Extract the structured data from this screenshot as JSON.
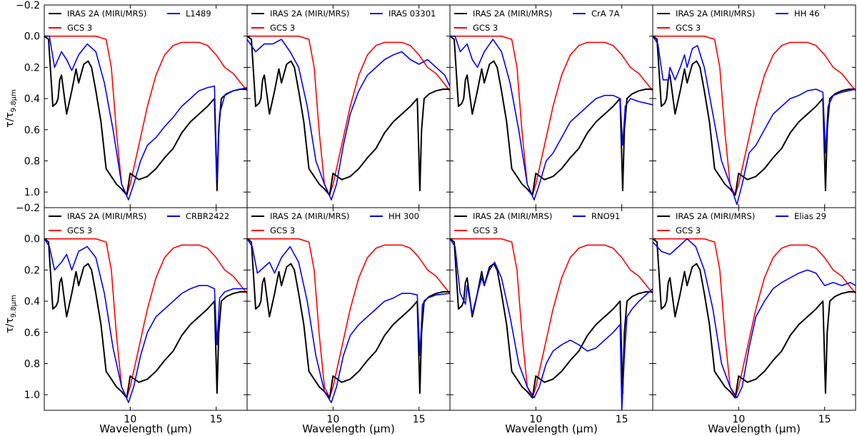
{
  "figure": {
    "ylabel": "τ/τ",
    "ylabel_sub": "9.8μm",
    "xlabel": "Wavelength (μm)"
  },
  "colors": {
    "reference": "#000000",
    "gcs3": "#ff0000",
    "source": "#0000ff"
  },
  "chart_data": {
    "type": "line",
    "layout": "2x4 grid of panels",
    "xlim": [
      5.0,
      16.8
    ],
    "ylim": [
      1.1,
      -0.2
    ],
    "y_inverted": true,
    "xticks": [
      10,
      15
    ],
    "yticks": [
      -0.2,
      0.0,
      0.2,
      0.4,
      0.6,
      0.8,
      1.0
    ],
    "ytick_labels": [
      "−0.2",
      "0.0",
      "0.2",
      "0.4",
      "0.6",
      "0.8",
      "1.0"
    ],
    "xlabel": "Wavelength (μm)",
    "ylabel": "τ/τ9.8μm",
    "reference_series": {
      "name": "IRAS 2A (MIRI/MRS)",
      "x": [
        5.0,
        5.25,
        5.5,
        5.7,
        5.8,
        5.9,
        6.0,
        6.3,
        6.6,
        6.85,
        7.0,
        7.3,
        7.55,
        7.75,
        8.0,
        8.3,
        8.6,
        8.9,
        9.2,
        9.5,
        9.8,
        10.0,
        10.5,
        11.0,
        11.5,
        12.0,
        12.5,
        13.0,
        13.5,
        14.0,
        14.5,
        14.9,
        15.05,
        15.15,
        15.3,
        15.6,
        16.0,
        16.4,
        16.8
      ],
      "y": [
        0.0,
        0.02,
        0.45,
        0.43,
        0.4,
        0.28,
        0.25,
        0.5,
        0.35,
        0.21,
        0.3,
        0.18,
        0.16,
        0.2,
        0.35,
        0.55,
        0.85,
        0.9,
        0.95,
        0.98,
        1.02,
        0.88,
        0.92,
        0.9,
        0.85,
        0.78,
        0.72,
        0.62,
        0.55,
        0.5,
        0.45,
        0.4,
        0.99,
        0.6,
        0.4,
        0.37,
        0.35,
        0.34,
        0.34
      ]
    },
    "gcs3_series": {
      "name": "GCS 3",
      "x": [
        5.0,
        6.0,
        7.0,
        8.0,
        8.6,
        8.9,
        9.2,
        9.5,
        9.8,
        10.0,
        10.5,
        11.0,
        11.5,
        12.0,
        12.5,
        13.0,
        13.5,
        14.0,
        14.5,
        15.0,
        15.5,
        16.0,
        16.8
      ],
      "y": [
        0.0,
        0.0,
        0.0,
        0.0,
        0.02,
        0.2,
        0.62,
        0.95,
        1.02,
        0.95,
        0.7,
        0.45,
        0.25,
        0.12,
        0.06,
        0.04,
        0.04,
        0.04,
        0.06,
        0.12,
        0.2,
        0.24,
        0.35
      ]
    },
    "panels": [
      {
        "legend": "L1489",
        "x": [
          5.0,
          5.3,
          5.6,
          6.0,
          6.3,
          6.6,
          7.0,
          7.5,
          8.0,
          8.5,
          9.0,
          9.5,
          9.9,
          10.2,
          10.6,
          11.0,
          11.5,
          12.0,
          12.5,
          13.0,
          13.5,
          14.0,
          14.5,
          14.9,
          15.05,
          15.2,
          15.5,
          16.0,
          16.8
        ],
        "y": [
          0.0,
          0.0,
          0.2,
          0.1,
          0.15,
          0.22,
          0.12,
          0.05,
          0.1,
          0.3,
          0.6,
          0.95,
          1.05,
          0.95,
          0.8,
          0.7,
          0.65,
          0.58,
          0.52,
          0.45,
          0.4,
          0.35,
          0.33,
          0.32,
          0.92,
          0.5,
          0.38,
          0.35,
          0.33
        ]
      },
      {
        "legend": "IRAS 03301",
        "x": [
          5.0,
          5.5,
          6.0,
          6.5,
          7.0,
          7.5,
          8.0,
          8.5,
          9.0,
          9.5,
          9.9,
          10.2,
          10.6,
          11.0,
          11.5,
          12.0,
          12.5,
          13.0,
          13.5,
          14.0,
          14.5,
          15.0,
          15.5,
          16.0,
          16.5,
          16.8
        ],
        "y": [
          0.02,
          0.1,
          0.05,
          0.05,
          0.02,
          0.1,
          0.2,
          0.45,
          0.8,
          0.95,
          1.05,
          0.95,
          0.7,
          0.5,
          0.35,
          0.25,
          0.2,
          0.15,
          0.12,
          0.1,
          0.15,
          0.18,
          0.15,
          0.2,
          0.25,
          0.32
        ]
      },
      {
        "legend": "CrA 7A",
        "x": [
          5.0,
          5.3,
          5.6,
          6.0,
          6.3,
          6.6,
          7.0,
          7.5,
          8.0,
          8.5,
          9.0,
          9.5,
          9.9,
          10.2,
          10.6,
          11.0,
          11.5,
          12.0,
          12.5,
          13.0,
          13.5,
          14.0,
          14.5,
          14.9,
          15.05,
          15.2,
          15.5,
          16.0,
          16.8
        ],
        "y": [
          0.0,
          0.0,
          0.1,
          0.05,
          0.15,
          0.2,
          0.1,
          0.02,
          0.1,
          0.3,
          0.6,
          0.95,
          1.05,
          0.95,
          0.8,
          0.75,
          0.65,
          0.55,
          0.5,
          0.45,
          0.4,
          0.38,
          0.38,
          0.4,
          0.7,
          0.45,
          0.4,
          0.42,
          0.44
        ]
      },
      {
        "legend": "HH 46",
        "x": [
          5.0,
          5.3,
          5.6,
          5.9,
          6.0,
          6.3,
          6.6,
          6.85,
          7.0,
          7.3,
          7.6,
          8.0,
          8.5,
          9.0,
          9.5,
          9.9,
          10.2,
          10.6,
          11.0,
          11.5,
          12.0,
          12.5,
          13.0,
          13.5,
          14.0,
          14.5,
          14.9,
          15.05,
          15.2,
          15.5,
          16.0,
          16.8
        ],
        "y": [
          0.0,
          0.05,
          0.28,
          0.28,
          0.2,
          0.28,
          0.2,
          0.12,
          0.2,
          0.08,
          0.06,
          0.2,
          0.5,
          0.8,
          0.95,
          1.08,
          0.95,
          0.75,
          0.7,
          0.6,
          0.5,
          0.45,
          0.4,
          0.38,
          0.35,
          0.34,
          0.36,
          0.75,
          0.45,
          0.38,
          0.36,
          0.34
        ]
      },
      {
        "legend": "CRBR2422",
        "x": [
          5.0,
          5.3,
          5.6,
          6.0,
          6.3,
          6.6,
          7.0,
          7.5,
          8.0,
          8.5,
          9.0,
          9.5,
          9.9,
          10.2,
          10.6,
          11.0,
          11.5,
          12.0,
          12.5,
          13.0,
          13.5,
          14.0,
          14.5,
          14.9,
          15.05,
          15.2,
          15.5,
          16.0,
          16.8
        ],
        "y": [
          0.0,
          0.05,
          0.2,
          0.15,
          0.1,
          0.2,
          0.08,
          0.05,
          0.12,
          0.35,
          0.7,
          0.95,
          1.05,
          0.95,
          0.75,
          0.6,
          0.5,
          0.45,
          0.4,
          0.35,
          0.32,
          0.3,
          0.3,
          0.32,
          0.68,
          0.38,
          0.34,
          0.32,
          0.32
        ]
      },
      {
        "legend": "HH 300",
        "x": [
          5.0,
          5.3,
          5.6,
          6.0,
          6.3,
          6.6,
          7.0,
          7.5,
          8.0,
          8.5,
          9.0,
          9.5,
          9.9,
          10.2,
          10.6,
          11.0,
          11.5,
          12.0,
          12.5,
          13.0,
          13.5,
          14.0,
          14.5,
          14.9,
          15.05,
          15.2,
          15.5,
          16.0,
          16.8
        ],
        "y": [
          0.0,
          0.05,
          0.22,
          0.18,
          0.15,
          0.22,
          0.12,
          0.05,
          0.15,
          0.4,
          0.75,
          0.98,
          1.05,
          0.95,
          0.75,
          0.62,
          0.55,
          0.5,
          0.45,
          0.4,
          0.38,
          0.35,
          0.35,
          0.36,
          0.75,
          0.42,
          0.38,
          0.36,
          0.35
        ]
      },
      {
        "legend": "RNO91",
        "x": [
          5.0,
          5.3,
          5.6,
          5.9,
          6.0,
          6.3,
          6.6,
          6.85,
          7.0,
          7.3,
          7.6,
          8.0,
          8.5,
          9.0,
          9.5,
          9.9,
          10.2,
          10.6,
          11.0,
          11.5,
          12.0,
          12.5,
          13.0,
          13.5,
          14.0,
          14.5,
          14.9,
          15.0,
          15.15,
          15.3,
          15.6,
          16.0,
          16.8
        ],
        "y": [
          0.0,
          0.05,
          0.35,
          0.42,
          0.3,
          0.48,
          0.35,
          0.25,
          0.3,
          0.2,
          0.15,
          0.25,
          0.5,
          0.8,
          0.95,
          1.02,
          0.95,
          0.8,
          0.72,
          0.68,
          0.65,
          0.68,
          0.72,
          0.7,
          0.65,
          0.6,
          0.55,
          1.1,
          0.75,
          0.5,
          0.45,
          0.4,
          0.32
        ]
      },
      {
        "legend": "Elias 29",
        "x": [
          5.0,
          5.5,
          6.0,
          6.5,
          7.0,
          7.5,
          8.0,
          8.5,
          9.0,
          9.5,
          9.9,
          10.2,
          10.6,
          11.0,
          11.5,
          12.0,
          12.5,
          13.0,
          13.5,
          14.0,
          14.5,
          15.0,
          15.5,
          16.0,
          16.5,
          16.8
        ],
        "y": [
          0.02,
          0.08,
          0.1,
          0.05,
          0.0,
          0.05,
          0.2,
          0.45,
          0.8,
          0.95,
          1.02,
          0.95,
          0.7,
          0.5,
          0.4,
          0.32,
          0.28,
          0.25,
          0.22,
          0.2,
          0.22,
          0.3,
          0.28,
          0.3,
          0.28,
          0.3
        ]
      }
    ]
  }
}
